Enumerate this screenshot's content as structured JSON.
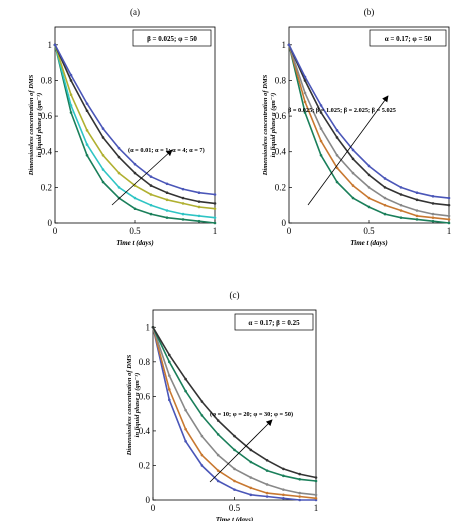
{
  "chart_data": [
    {
      "panel_label": "(a)",
      "type": "line",
      "xlabel": "Time t (days)",
      "ylabel_line1": "Dimensionless concentration of DMS",
      "ylabel_line2": "in liquid phase u (gm⁻³)",
      "xlim": [
        0,
        1
      ],
      "ylim": [
        0,
        1.1
      ],
      "xticks": [
        "0",
        "0.5",
        "1"
      ],
      "yticks": [
        "0",
        "0.2",
        "0.4",
        "0.6",
        "0.8",
        "1"
      ],
      "legend_box": "β = 0.025; φ = 50",
      "annotation": "(α = 0.01; α = 1; α = 4; α = 7)",
      "series": [
        {
          "color": "#1a7f5a",
          "x": [
            0,
            0.1,
            0.2,
            0.3,
            0.4,
            0.5,
            0.6,
            0.7,
            0.8,
            0.9,
            1.0
          ],
          "values": [
            1.0,
            0.62,
            0.38,
            0.23,
            0.14,
            0.08,
            0.05,
            0.03,
            0.02,
            0.01,
            0.0
          ]
        },
        {
          "color": "#2ec4c4",
          "x": [
            0,
            0.1,
            0.2,
            0.3,
            0.4,
            0.5,
            0.6,
            0.7,
            0.8,
            0.9,
            1.0
          ],
          "values": [
            1.0,
            0.66,
            0.44,
            0.3,
            0.2,
            0.14,
            0.1,
            0.07,
            0.05,
            0.04,
            0.03
          ]
        },
        {
          "color": "#b0b030",
          "x": [
            0,
            0.1,
            0.2,
            0.3,
            0.4,
            0.5,
            0.6,
            0.7,
            0.8,
            0.9,
            1.0
          ],
          "values": [
            1.0,
            0.72,
            0.52,
            0.38,
            0.28,
            0.21,
            0.16,
            0.13,
            0.11,
            0.09,
            0.08
          ]
        },
        {
          "color": "#333333",
          "x": [
            0,
            0.1,
            0.2,
            0.3,
            0.4,
            0.5,
            0.6,
            0.7,
            0.8,
            0.9,
            1.0
          ],
          "values": [
            1.0,
            0.8,
            0.63,
            0.48,
            0.37,
            0.28,
            0.21,
            0.17,
            0.14,
            0.12,
            0.11
          ]
        },
        {
          "color": "#4a56b8",
          "x": [
            0,
            0.1,
            0.2,
            0.3,
            0.4,
            0.5,
            0.6,
            0.7,
            0.8,
            0.9,
            1.0
          ],
          "values": [
            1.0,
            0.83,
            0.67,
            0.53,
            0.42,
            0.33,
            0.26,
            0.22,
            0.19,
            0.17,
            0.16
          ]
        }
      ]
    },
    {
      "panel_label": "(b)",
      "type": "line",
      "xlabel": "Time t (days)",
      "ylabel_line1": "Dimensionless concentration of DMS",
      "ylabel_line2": "in liquid phase u (gm⁻³)",
      "xlim": [
        0,
        1
      ],
      "ylim": [
        0,
        1.1
      ],
      "xticks": [
        "0",
        "0.5",
        "1"
      ],
      "yticks": [
        "0",
        "0.2",
        "0.4",
        "0.6",
        "0.8",
        "1"
      ],
      "legend_box": "α = 0.17; φ = 50",
      "annotation": "β = 0.025; β = 1.025; β = 2.025; β = 5.025",
      "series": [
        {
          "color": "#1a7f5a",
          "x": [
            0,
            0.1,
            0.2,
            0.3,
            0.4,
            0.5,
            0.6,
            0.7,
            0.8,
            0.9,
            1.0
          ],
          "values": [
            1.0,
            0.62,
            0.38,
            0.23,
            0.14,
            0.09,
            0.05,
            0.03,
            0.02,
            0.01,
            0.0
          ]
        },
        {
          "color": "#c87830",
          "x": [
            0,
            0.1,
            0.2,
            0.3,
            0.4,
            0.5,
            0.6,
            0.7,
            0.8,
            0.9,
            1.0
          ],
          "values": [
            1.0,
            0.68,
            0.46,
            0.31,
            0.21,
            0.14,
            0.1,
            0.07,
            0.04,
            0.03,
            0.02
          ]
        },
        {
          "color": "#888888",
          "x": [
            0,
            0.1,
            0.2,
            0.3,
            0.4,
            0.5,
            0.6,
            0.7,
            0.8,
            0.9,
            1.0
          ],
          "values": [
            1.0,
            0.73,
            0.53,
            0.38,
            0.28,
            0.2,
            0.14,
            0.1,
            0.07,
            0.05,
            0.04
          ]
        },
        {
          "color": "#333333",
          "x": [
            0,
            0.1,
            0.2,
            0.3,
            0.4,
            0.5,
            0.6,
            0.7,
            0.8,
            0.9,
            1.0
          ],
          "values": [
            1.0,
            0.8,
            0.62,
            0.48,
            0.36,
            0.27,
            0.2,
            0.16,
            0.13,
            0.11,
            0.1
          ]
        },
        {
          "color": "#4a56b8",
          "x": [
            0,
            0.1,
            0.2,
            0.3,
            0.4,
            0.5,
            0.6,
            0.7,
            0.8,
            0.9,
            1.0
          ],
          "values": [
            1.0,
            0.82,
            0.66,
            0.52,
            0.41,
            0.32,
            0.25,
            0.2,
            0.17,
            0.15,
            0.14
          ]
        }
      ]
    },
    {
      "panel_label": "(c)",
      "type": "line",
      "xlabel": "Time t (days)",
      "ylabel_line1": "Dimensionless concentration of DMS",
      "ylabel_line2": "in liquid phase u (gm⁻³)",
      "xlim": [
        0,
        1
      ],
      "ylim": [
        0,
        1.1
      ],
      "xticks": [
        "0",
        "0.5",
        "1"
      ],
      "yticks": [
        "0",
        "0.2",
        "0.4",
        "0.6",
        "0.8",
        "1"
      ],
      "legend_box": "α = 0.17; β = 0.25",
      "annotation": "(φ = 10; φ = 20; φ = 30; φ = 50)",
      "series": [
        {
          "color": "#4a56b8",
          "x": [
            0,
            0.1,
            0.2,
            0.3,
            0.4,
            0.5,
            0.6,
            0.7,
            0.8,
            0.9,
            1.0
          ],
          "values": [
            1.0,
            0.58,
            0.34,
            0.2,
            0.11,
            0.06,
            0.03,
            0.02,
            0.01,
            0.0,
            0.0
          ]
        },
        {
          "color": "#c87830",
          "x": [
            0,
            0.1,
            0.2,
            0.3,
            0.4,
            0.5,
            0.6,
            0.7,
            0.8,
            0.9,
            1.0
          ],
          "values": [
            1.0,
            0.64,
            0.41,
            0.26,
            0.17,
            0.11,
            0.07,
            0.04,
            0.03,
            0.02,
            0.01
          ]
        },
        {
          "color": "#888888",
          "x": [
            0,
            0.1,
            0.2,
            0.3,
            0.4,
            0.5,
            0.6,
            0.7,
            0.8,
            0.9,
            1.0
          ],
          "values": [
            1.0,
            0.72,
            0.52,
            0.37,
            0.26,
            0.18,
            0.13,
            0.09,
            0.06,
            0.04,
            0.03
          ]
        },
        {
          "color": "#1a7f5a",
          "x": [
            0,
            0.1,
            0.2,
            0.3,
            0.4,
            0.5,
            0.6,
            0.7,
            0.8,
            0.9,
            1.0
          ],
          "values": [
            1.0,
            0.8,
            0.63,
            0.49,
            0.38,
            0.29,
            0.22,
            0.17,
            0.14,
            0.12,
            0.11
          ]
        },
        {
          "color": "#333333",
          "x": [
            0,
            0.1,
            0.2,
            0.3,
            0.4,
            0.5,
            0.6,
            0.7,
            0.8,
            0.9,
            1.0
          ],
          "values": [
            1.0,
            0.84,
            0.7,
            0.57,
            0.46,
            0.37,
            0.29,
            0.23,
            0.18,
            0.15,
            0.13
          ]
        }
      ]
    }
  ]
}
